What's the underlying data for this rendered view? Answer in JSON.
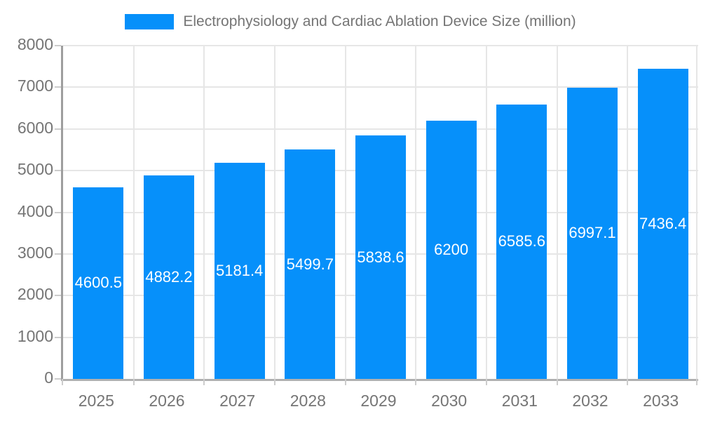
{
  "header": {
    "title": "Electrophysiology and Cardiac Ablation Device Size (million)"
  },
  "colors": {
    "bar": "#0690fa",
    "grid": "#e6e6e6",
    "axis": "#9e9e9e",
    "tick": "#cccccc",
    "label_text": "#757575",
    "value_text": "#ffffff",
    "background": "#ffffff"
  },
  "chart_data": {
    "type": "bar",
    "title": "Electrophysiology and Cardiac Ablation Device Size (million)",
    "categories": [
      "2025",
      "2026",
      "2027",
      "2028",
      "2029",
      "2030",
      "2031",
      "2032",
      "2033"
    ],
    "values": [
      4600.5,
      4882.2,
      5181.4,
      5499.7,
      5838.6,
      6200,
      6585.6,
      6997.1,
      7436.4
    ],
    "value_labels": [
      "4600.5",
      "4882.2",
      "5181.4",
      "5499.7",
      "5838.6",
      "6200",
      "6585.6",
      "6997.1",
      "7436.4"
    ],
    "xlabel": "",
    "ylabel": "",
    "ylim": [
      0,
      8000
    ],
    "ytick_step": 1000,
    "ytick_labels": [
      "0",
      "1000",
      "2000",
      "3000",
      "4000",
      "5000",
      "6000",
      "7000",
      "8000"
    ],
    "grid": true,
    "legend_position": "top",
    "value_label_position": "center-inside"
  }
}
